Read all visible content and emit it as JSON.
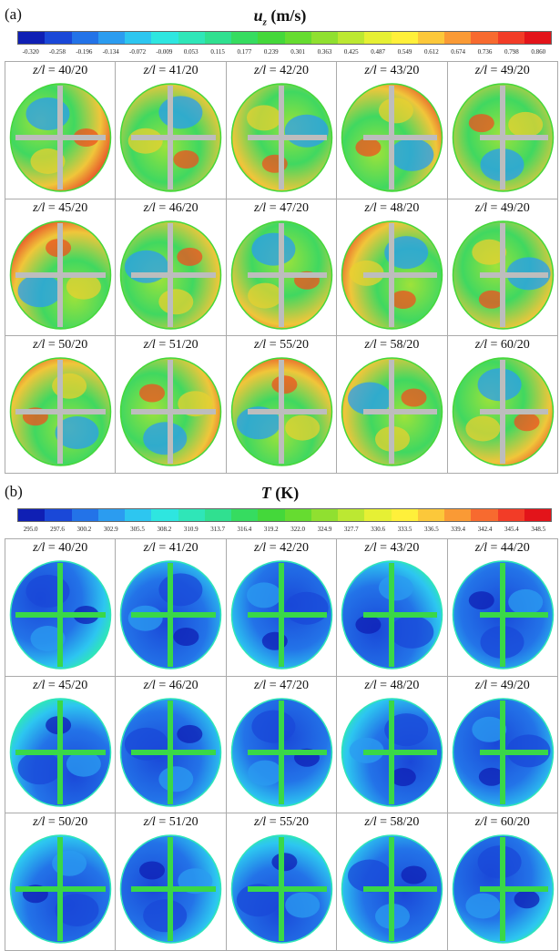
{
  "panels": [
    {
      "label": "(a)",
      "title_symbol": "u",
      "title_sub": "z",
      "title_unit": "(m/s)",
      "colormap": [
        "#0f1fb4",
        "#1a48d8",
        "#2373e8",
        "#2b9cf0",
        "#2dc6f0",
        "#2ee6e0",
        "#2fe6b8",
        "#30e090",
        "#36dc60",
        "#44d83a",
        "#66dc30",
        "#90e030",
        "#bce832",
        "#e6f034",
        "#fff03a",
        "#fcc83a",
        "#fa9a35",
        "#f76a2f",
        "#f23c27",
        "#e3141a"
      ],
      "ticks": [
        "-0.320",
        "-0.258",
        "-0.196",
        "-0.134",
        "-0.072",
        "-0.009",
        "0.053",
        "0.115",
        "0.177",
        "0.239",
        "0.301",
        "0.363",
        "0.425",
        "0.487",
        "0.549",
        "0.612",
        "0.674",
        "0.736",
        "0.798",
        "0.860"
      ],
      "cells": [
        "40/20",
        "41/20",
        "42/20",
        "43/20",
        "49/20",
        "45/20",
        "46/20",
        "47/20",
        "48/20",
        "49/20",
        "50/20",
        "51/20",
        "55/20",
        "58/20",
        "60/20"
      ]
    },
    {
      "label": "(b)",
      "title_symbol": "T",
      "title_sub": "",
      "title_unit": "(K)",
      "colormap": [
        "#0f1fb4",
        "#1a48d8",
        "#2373e8",
        "#2b9cf0",
        "#2dc6f0",
        "#2ee6e0",
        "#2fe6b8",
        "#30e090",
        "#36dc60",
        "#44d83a",
        "#66dc30",
        "#90e030",
        "#bce832",
        "#e6f034",
        "#fff03a",
        "#fcc83a",
        "#fa9a35",
        "#f76a2f",
        "#f23c27",
        "#e3141a"
      ],
      "ticks": [
        "295.0",
        "297.6",
        "300.2",
        "302.9",
        "305.5",
        "308.2",
        "310.9",
        "313.7",
        "316.4",
        "319.2",
        "322.0",
        "324.9",
        "327.7",
        "330.6",
        "333.5",
        "336.5",
        "339.4",
        "342.4",
        "345.4",
        "348.5"
      ],
      "cells": [
        "40/20",
        "41/20",
        "42/20",
        "43/20",
        "44/20",
        "45/20",
        "46/20",
        "47/20",
        "48/20",
        "49/20",
        "50/20",
        "51/20",
        "55/20",
        "58/20",
        "60/20"
      ]
    }
  ],
  "cell_label_prefix": "z/l"
}
